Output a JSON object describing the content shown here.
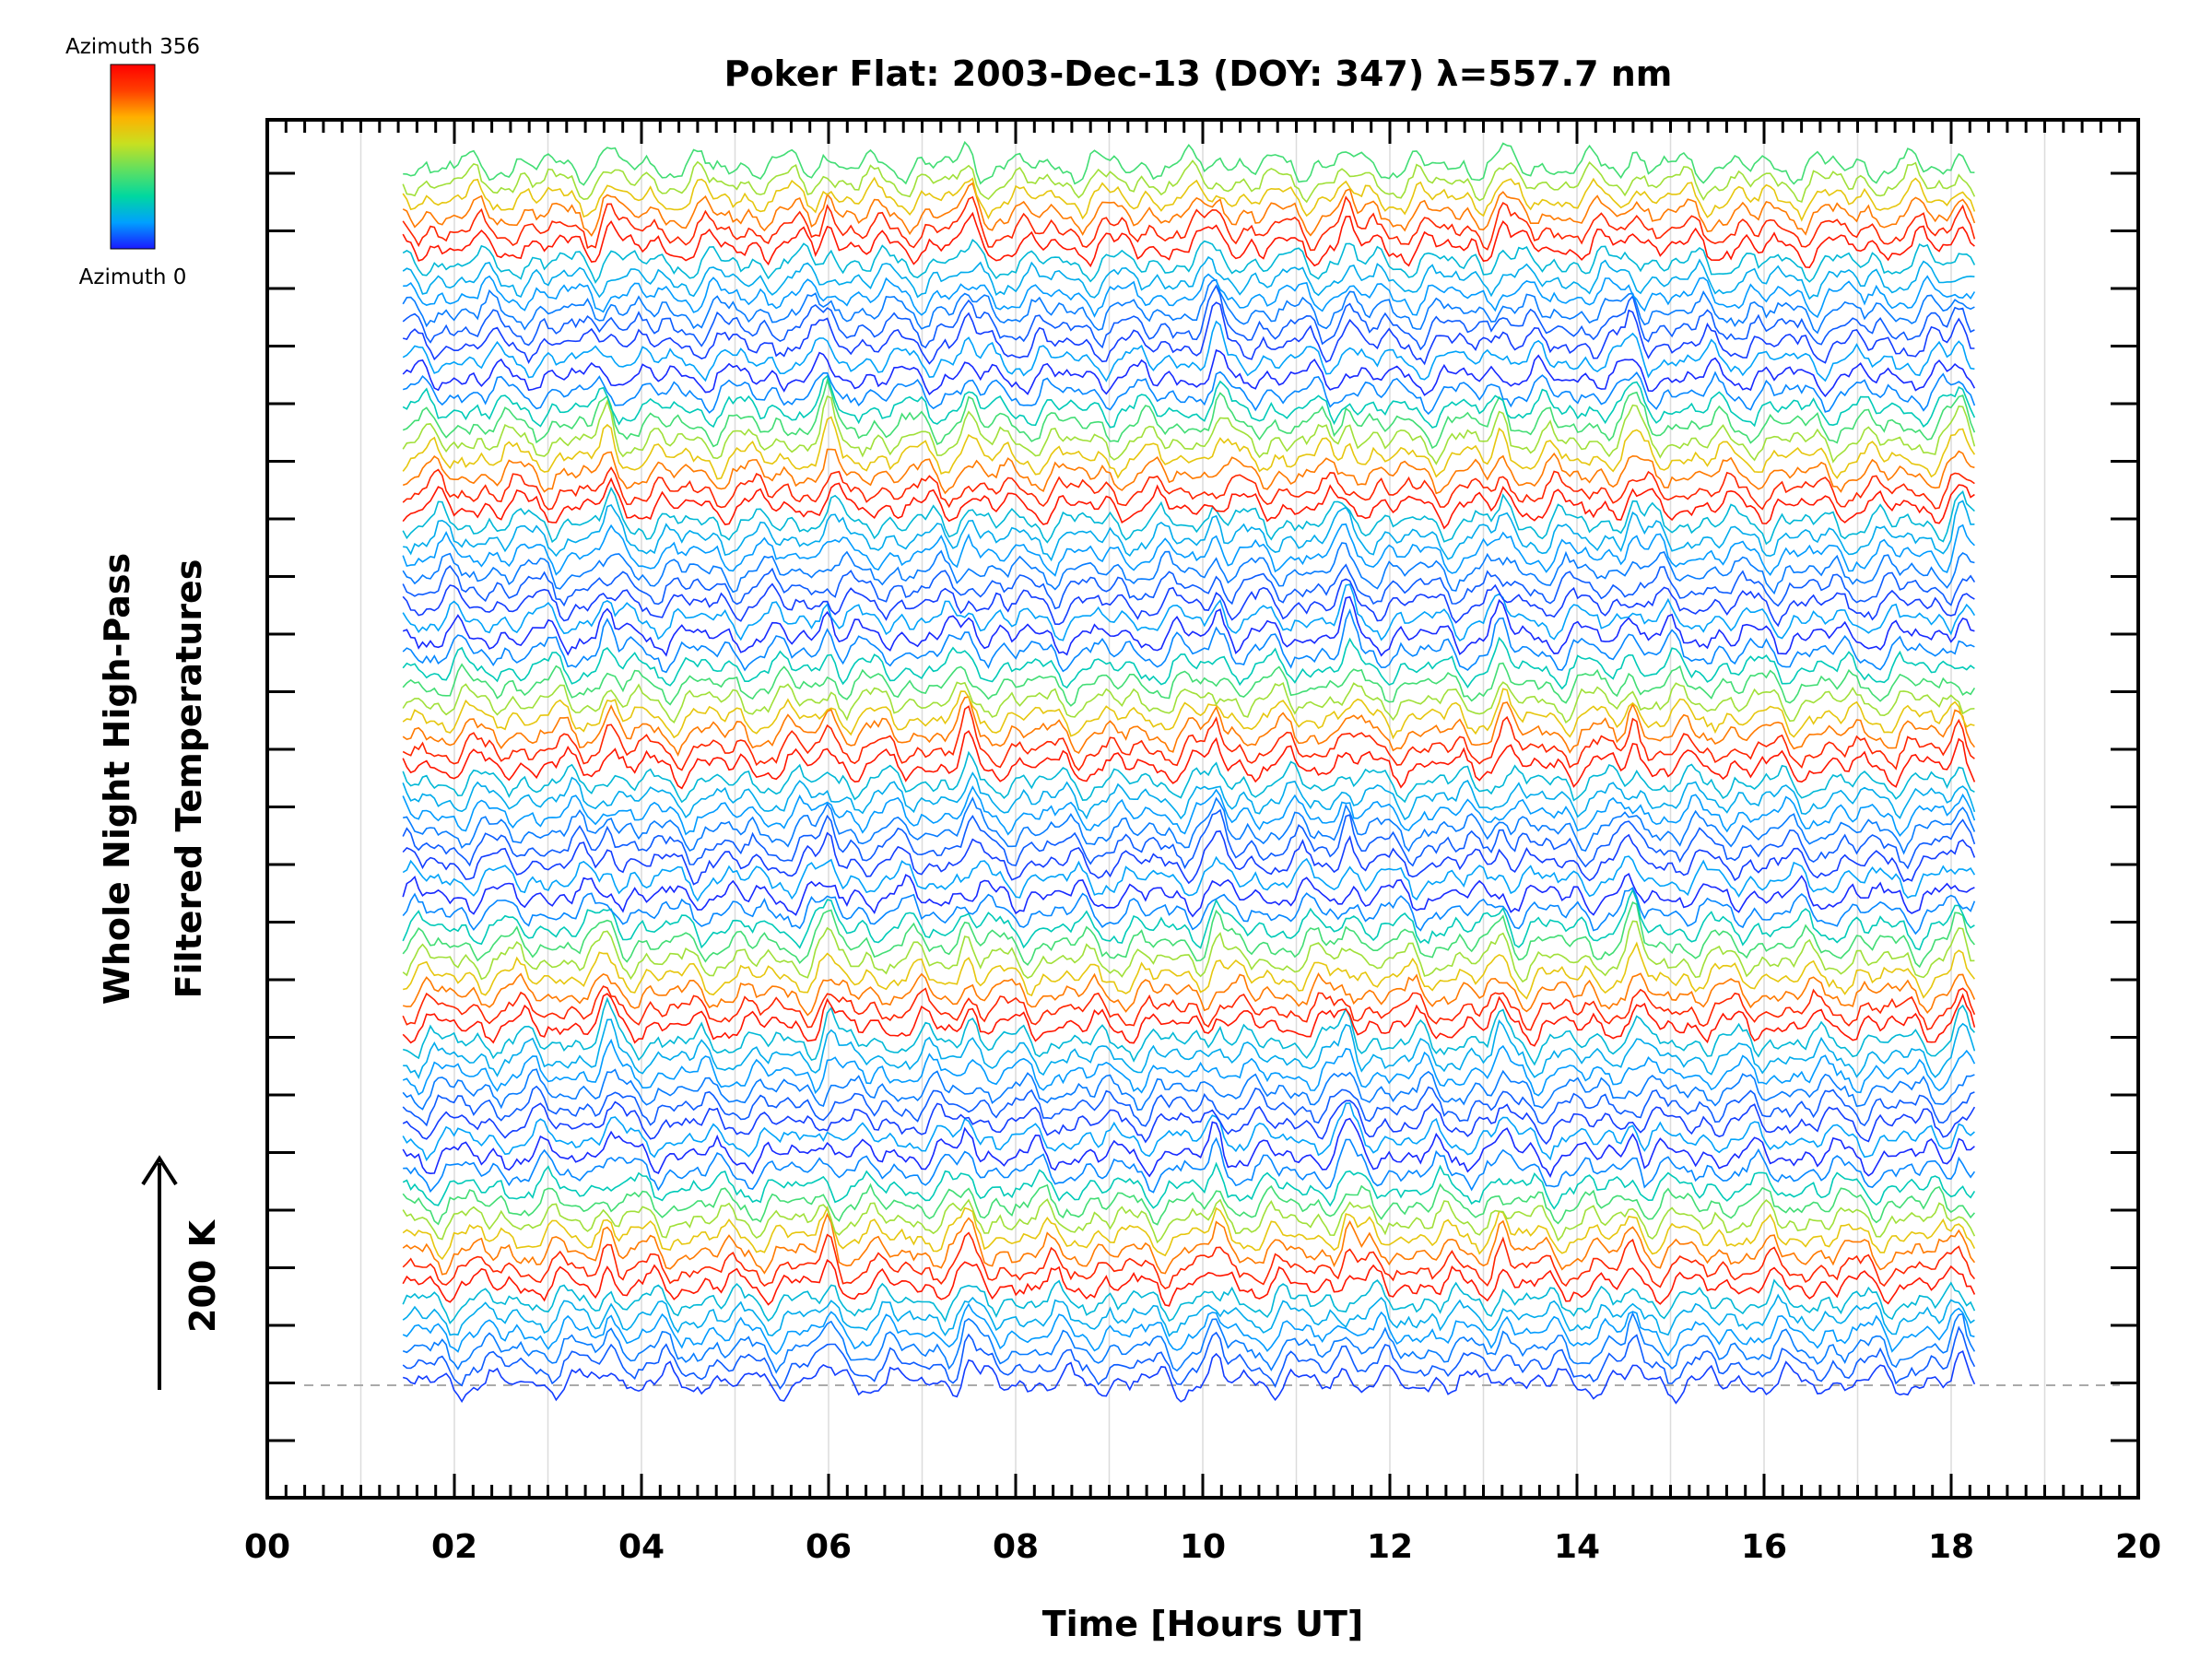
{
  "chart_data": {
    "type": "line",
    "title": "Poker Flat: 2003-Dec-13 (DOY: 347) λ=557.7 nm",
    "xlabel": "Time [Hours UT]",
    "ylabel_line1": "Whole Night High-Pass",
    "ylabel_line2": "Filtered Temperatures",
    "scale_label": "200 K",
    "xlim": [
      0,
      20
    ],
    "x_tick_labels": [
      "00",
      "02",
      "04",
      "06",
      "08",
      "10",
      "12",
      "14",
      "16",
      "18",
      "20"
    ],
    "x_tick_values": [
      0,
      2,
      4,
      6,
      8,
      10,
      12,
      14,
      16,
      18,
      20
    ],
    "data_time_range": [
      1.45,
      18.25
    ],
    "y_offset_axis_ticks": 24,
    "grid_x": true,
    "baseline_dashed": true,
    "series_count": 76,
    "colorbar": {
      "top_label": "Azimuth 356",
      "bottom_label": "Azimuth 0",
      "colormap": "rainbow",
      "colors": [
        "#1a1aff",
        "#00a0ff",
        "#00d8a0",
        "#60e060",
        "#c8e020",
        "#ffb000",
        "#ff4000",
        "#ff0000"
      ]
    },
    "stacked_groups": 5,
    "common_features_hours_UT": [
      3.65,
      6.0,
      7.5,
      10.15,
      11.55,
      13.2,
      14.6,
      18.1
    ],
    "note_values": "Each trace is a high-pass filtered temperature time series for one azimuth, vertically offset; 200 K scale arrow"
  }
}
